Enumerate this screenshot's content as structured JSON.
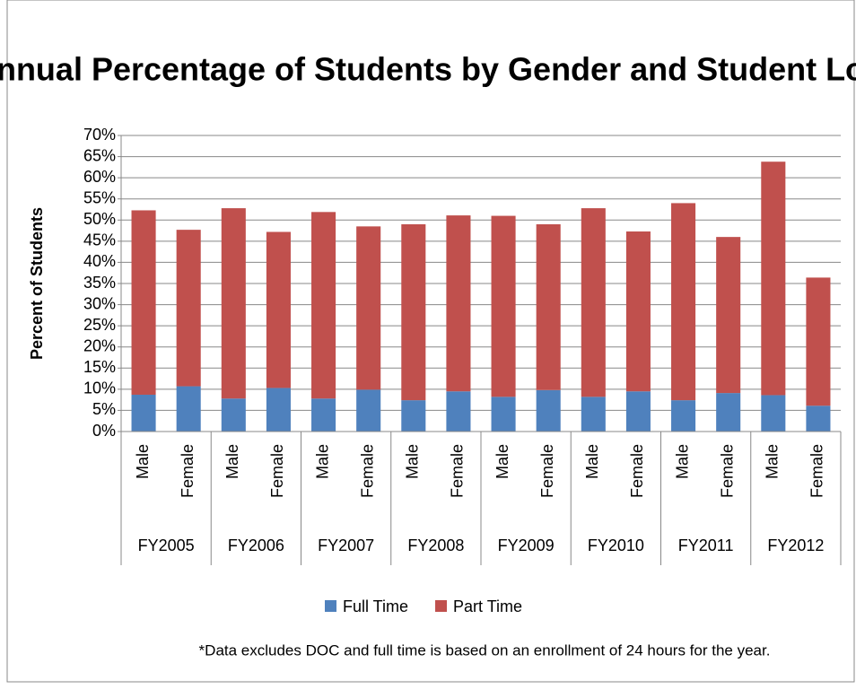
{
  "chart_data": {
    "type": "stacked_bar",
    "title": "Annual Percentage of Students by Gender and Student Load",
    "y_label": "Percent of Students",
    "footnote": "*Data excludes DOC and full time is based on an enrollment of 24 hours for the year.",
    "categories": [
      "Male",
      "Female",
      "Male",
      "Female",
      "Male",
      "Female",
      "Male",
      "Female",
      "Male",
      "Female",
      "Male",
      "Female",
      "Male",
      "Female",
      "Male",
      "Female"
    ],
    "groups": [
      "FY2005",
      "FY2006",
      "FY2007",
      "FY2008",
      "FY2009",
      "FY2010",
      "FY2011",
      "FY2012"
    ],
    "series": [
      {
        "name": "Full Time",
        "color": "#4f81bd",
        "values": [
          8.7,
          10.7,
          7.8,
          10.3,
          7.8,
          9.9,
          7.4,
          9.5,
          8.2,
          9.8,
          8.2,
          9.5,
          7.4,
          9.1,
          8.6,
          6.1
        ]
      },
      {
        "name": "Part Time",
        "color": "#c0504d",
        "values": [
          43.6,
          37.0,
          45.0,
          36.9,
          44.1,
          38.6,
          41.6,
          41.6,
          42.8,
          39.2,
          44.6,
          37.8,
          46.6,
          36.9,
          55.2,
          30.3
        ]
      }
    ],
    "ylim": [
      0,
      70
    ],
    "yticks": [
      {
        "value": 0,
        "label": "0%"
      },
      {
        "value": 5,
        "label": "5%"
      },
      {
        "value": 10,
        "label": "10%"
      },
      {
        "value": 15,
        "label": "15%"
      },
      {
        "value": 20,
        "label": "20%"
      },
      {
        "value": 25,
        "label": "25%"
      },
      {
        "value": 30,
        "label": "30%"
      },
      {
        "value": 35,
        "label": "35%"
      },
      {
        "value": 40,
        "label": "40%"
      },
      {
        "value": 45,
        "label": "45%"
      },
      {
        "value": 50,
        "label": "50%"
      },
      {
        "value": 55,
        "label": "55%"
      },
      {
        "value": 60,
        "label": "60%"
      },
      {
        "value": 65,
        "label": "65%"
      },
      {
        "value": 70,
        "label": "70%"
      }
    ],
    "grid": true,
    "legend": "bottom"
  }
}
